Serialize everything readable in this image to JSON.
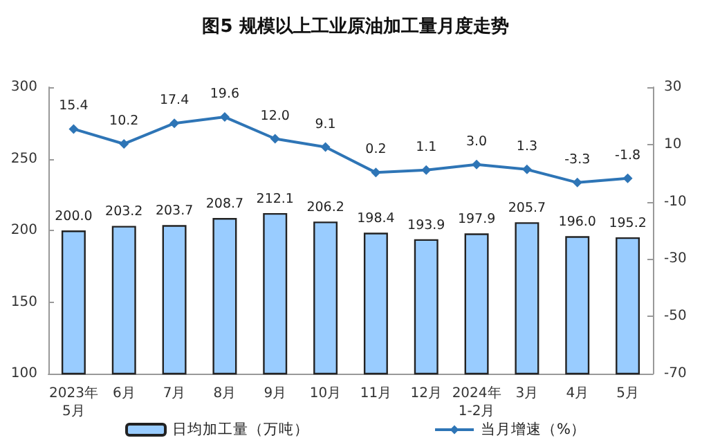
{
  "chart_data": {
    "type": "bar",
    "title": "图5 规模以上工业原油加工量月度走势",
    "categories": [
      "2023年\n5月",
      "6月",
      "7月",
      "8月",
      "9月",
      "10月",
      "11月",
      "12月",
      "2024年\n1-2月",
      "3月",
      "4月",
      "5月"
    ],
    "series": [
      {
        "name": "日均加工量（万吨）",
        "color": "#99ccff",
        "values": [
          200.0,
          203.2,
          203.7,
          208.7,
          212.1,
          206.2,
          198.4,
          193.9,
          197.9,
          205.7,
          196.0,
          195.2
        ],
        "value_labels": [
          "200.0",
          "203.2",
          "203.7",
          "208.7",
          "212.1",
          "206.2",
          "198.4",
          "193.9",
          "197.9",
          "205.7",
          "196.0",
          "195.2"
        ]
      },
      {
        "name": "当月增速（%）",
        "type": "line",
        "axis": "y2",
        "color": "#2e75b6",
        "marker": "diamond",
        "values": [
          15.4,
          10.2,
          17.4,
          19.6,
          12.0,
          9.1,
          0.2,
          1.1,
          3.0,
          1.3,
          -3.3,
          -1.8
        ],
        "value_labels": [
          "15.4",
          "10.2",
          "17.4",
          "19.6",
          "12.0",
          "9.1",
          "0.2",
          "1.1",
          "3.0",
          "1.3",
          "-3.3",
          "-1.8"
        ]
      }
    ],
    "ylim": [
      100,
      300
    ],
    "yticks": [
      100,
      150,
      200,
      250,
      300
    ],
    "y2lim": [
      -70,
      30
    ],
    "y2ticks": [
      -70,
      -50,
      -30,
      -10,
      10,
      30
    ],
    "grid": false,
    "legend": "bottom"
  }
}
